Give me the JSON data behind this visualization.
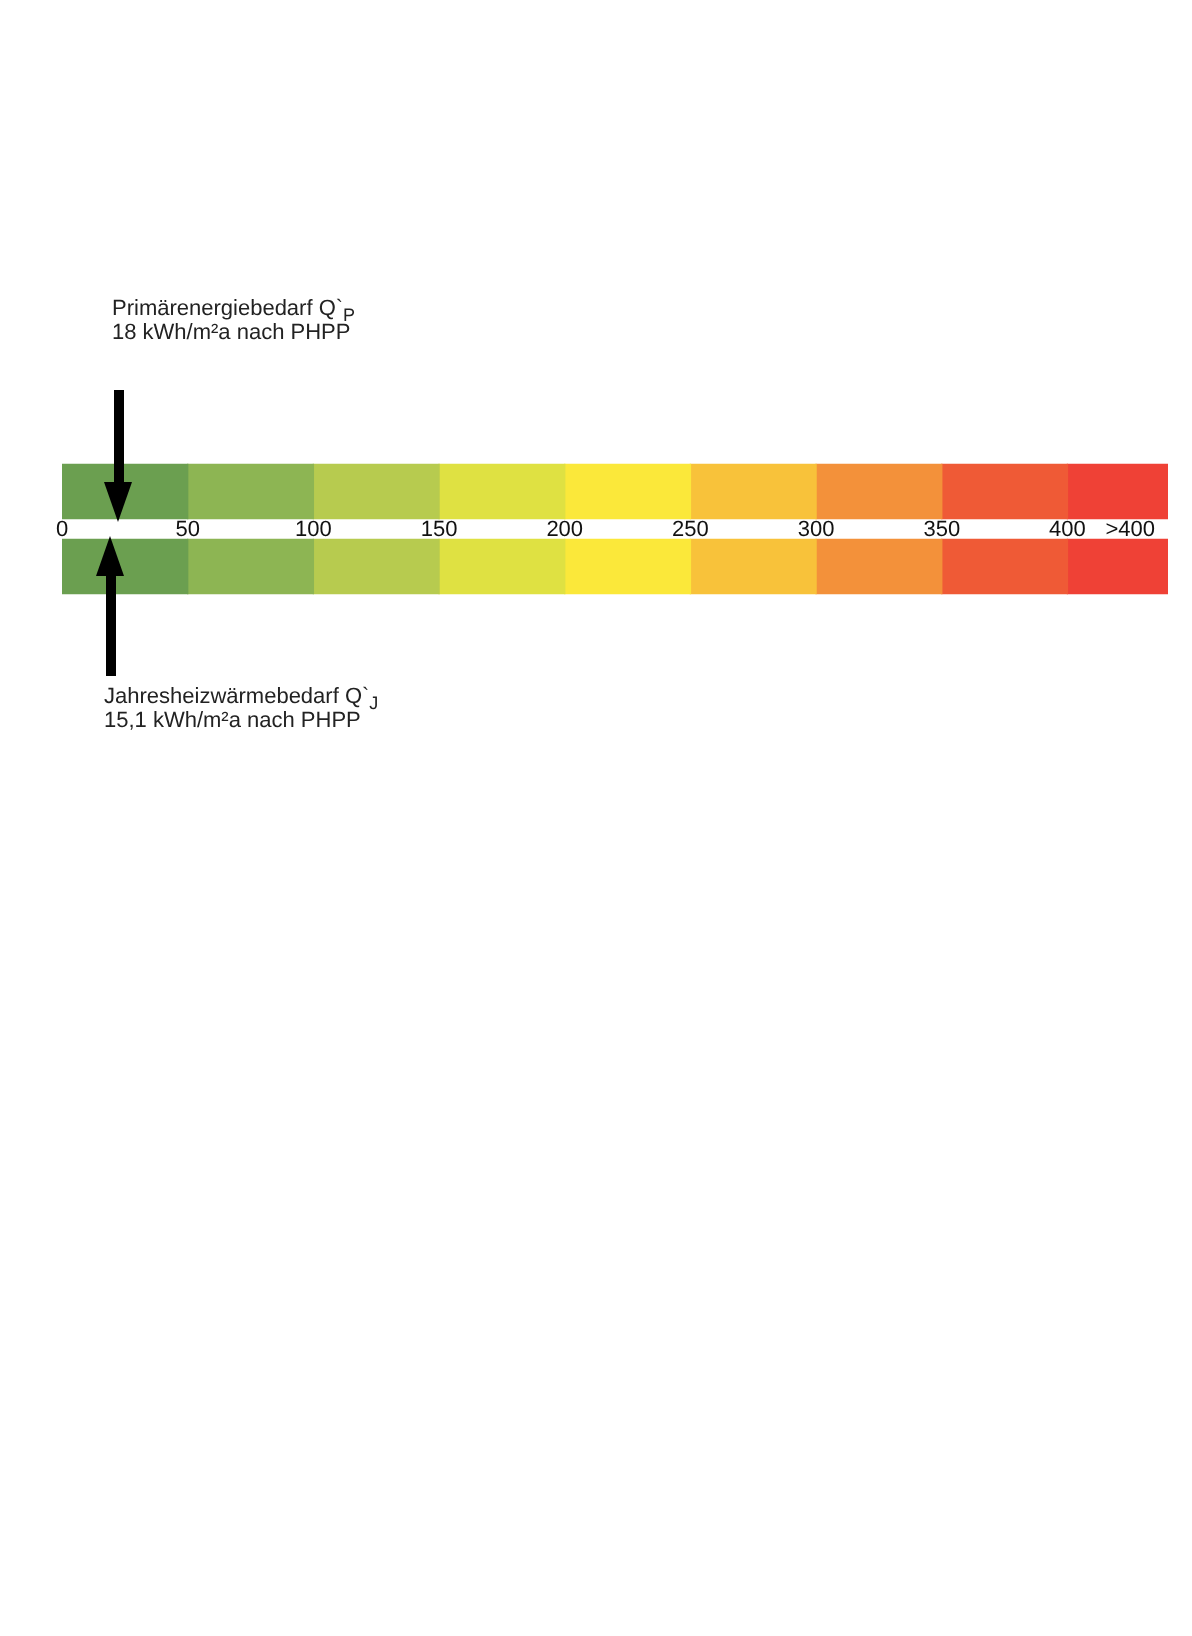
{
  "chart_data": {
    "type": "bar",
    "orientation": "horizontal",
    "stacked": true,
    "tick_labels": "x",
    "categories": [
      null,
      null
    ],
    "xlim": [
      0,
      440
    ],
    "xticks": [
      0,
      50,
      100,
      150,
      200,
      250,
      300,
      350,
      400,
      {
        "value": 425,
        "label": ">400"
      }
    ],
    "series": [
      {
        "color": "#6b9f50",
        "values": [
          50,
          50
        ]
      },
      {
        "color": "#8db553",
        "values": [
          50,
          50
        ]
      },
      {
        "color": "#b7cb4f",
        "values": [
          50,
          50
        ]
      },
      {
        "color": "#dfe142",
        "values": [
          50,
          50
        ]
      },
      {
        "color": "#fbe83a",
        "values": [
          50,
          50
        ]
      },
      {
        "color": "#f8c23a",
        "values": [
          50,
          50
        ]
      },
      {
        "color": "#f3913a",
        "values": [
          50,
          50
        ]
      },
      {
        "color": "#ef5a36",
        "values": [
          50,
          50
        ]
      },
      {
        "color": "#ef4136",
        "values": [
          40,
          40
        ]
      }
    ],
    "annotations": [
      "Primärenergiebedarf Q`$_{P}$\n18 kWh/m²a nach PHPP",
      "Jahresheizwärmebedarf Q`$_{J}$\n15,1 kWh/m²a nach PHPP"
    ]
  }
}
